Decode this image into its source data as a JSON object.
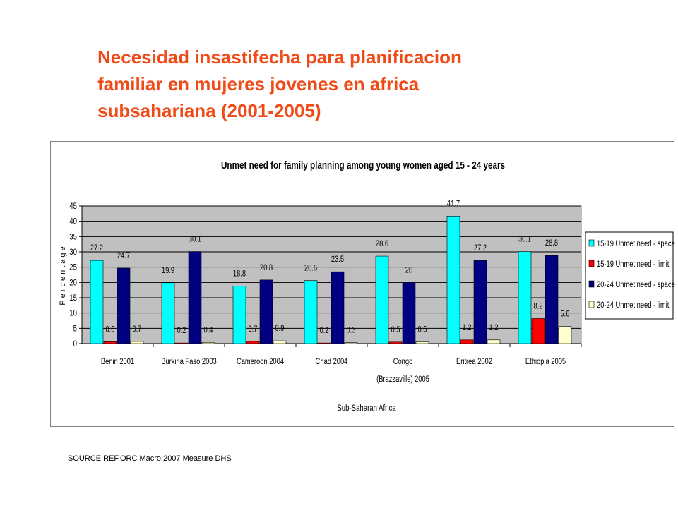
{
  "slide": {
    "title_lines": [
      "Necesidad insastifecha para planificacion",
      "familiar en mujeres jovenes en africa",
      "subsahariana (2001-2005)"
    ],
    "title_color": "#f04a16",
    "source": "SOURCE REF.ORC  Macro 2007 Measure DHS"
  },
  "chart_data": {
    "type": "bar",
    "title": "Unmet need for family planning among young women aged 15 - 24 years",
    "xlabel": "Sub-Saharan Africa",
    "ylabel": "Percentage",
    "ylim": [
      0,
      45
    ],
    "yticks": [
      0,
      5,
      10,
      15,
      20,
      25,
      30,
      35,
      40,
      45
    ],
    "grid": true,
    "plot_background": "#c0c0c0",
    "legend_position": "right",
    "categories": [
      [
        "Benin 2001"
      ],
      [
        "Burkina Faso 2003"
      ],
      [
        "Cameroon 2004"
      ],
      [
        "Chad 2004"
      ],
      [
        "Congo",
        "(Brazzaville) 2005"
      ],
      [
        "Eritrea 2002"
      ],
      [
        "Ethiopia 2005"
      ]
    ],
    "series": [
      {
        "name": "15-19 Unmet need - space",
        "color": "#00ffff",
        "values": [
          27.2,
          19.9,
          18.8,
          20.6,
          28.6,
          41.7,
          30.1
        ]
      },
      {
        "name": "15-19 Unmet need - limit",
        "color": "#ff0000",
        "values": [
          0.6,
          0.2,
          0.7,
          0.2,
          0.5,
          1.2,
          8.2
        ]
      },
      {
        "name": "20-24 Unmet need - space",
        "color": "#000080",
        "values": [
          24.7,
          30.1,
          20.8,
          23.5,
          20,
          27.2,
          28.8
        ]
      },
      {
        "name": "20-24 Unmet need - limit",
        "color": "#ffffcc",
        "values": [
          0.7,
          0.4,
          0.9,
          0.3,
          0.6,
          1.2,
          5.6
        ]
      }
    ]
  }
}
